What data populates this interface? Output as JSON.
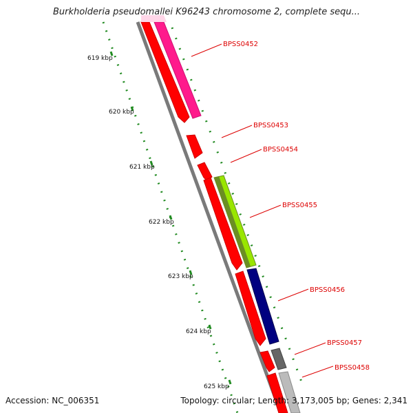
{
  "title": "Burkholderia pseudomallei K96243 chromosome 2, complete sequ...",
  "accession_label": "Accession: NC_006351",
  "summary_label": "Topology: circular; Length: 3,173,005 bp; Genes: 2,341",
  "colors": {
    "backbone": "#8a8a8a",
    "tick": "#228b22",
    "label_line": "#dd0000",
    "label_text": "#dd0000"
  },
  "ticks": [
    {
      "label": "619 kbp"
    },
    {
      "label": "620 kbp"
    },
    {
      "label": "621 kbp"
    },
    {
      "label": "622 kbp"
    },
    {
      "label": "623 kbp"
    },
    {
      "label": "624 kbp"
    },
    {
      "label": "625 kbp"
    }
  ],
  "genes": [
    {
      "id": "BPSS0452",
      "strand_track": "red-reverse",
      "color": "#ff1a8c"
    },
    {
      "id": "BPSS0453",
      "color": "#ff0000"
    },
    {
      "id": "BPSS0454",
      "color": "#ff0000"
    },
    {
      "id": "BPSS0455",
      "color": "#99e600"
    },
    {
      "id": "BPSS0456",
      "color": "#000080"
    },
    {
      "id": "BPSS0457",
      "color": "#666666"
    },
    {
      "id": "BPSS0458",
      "color": "#bbbbbb"
    }
  ]
}
